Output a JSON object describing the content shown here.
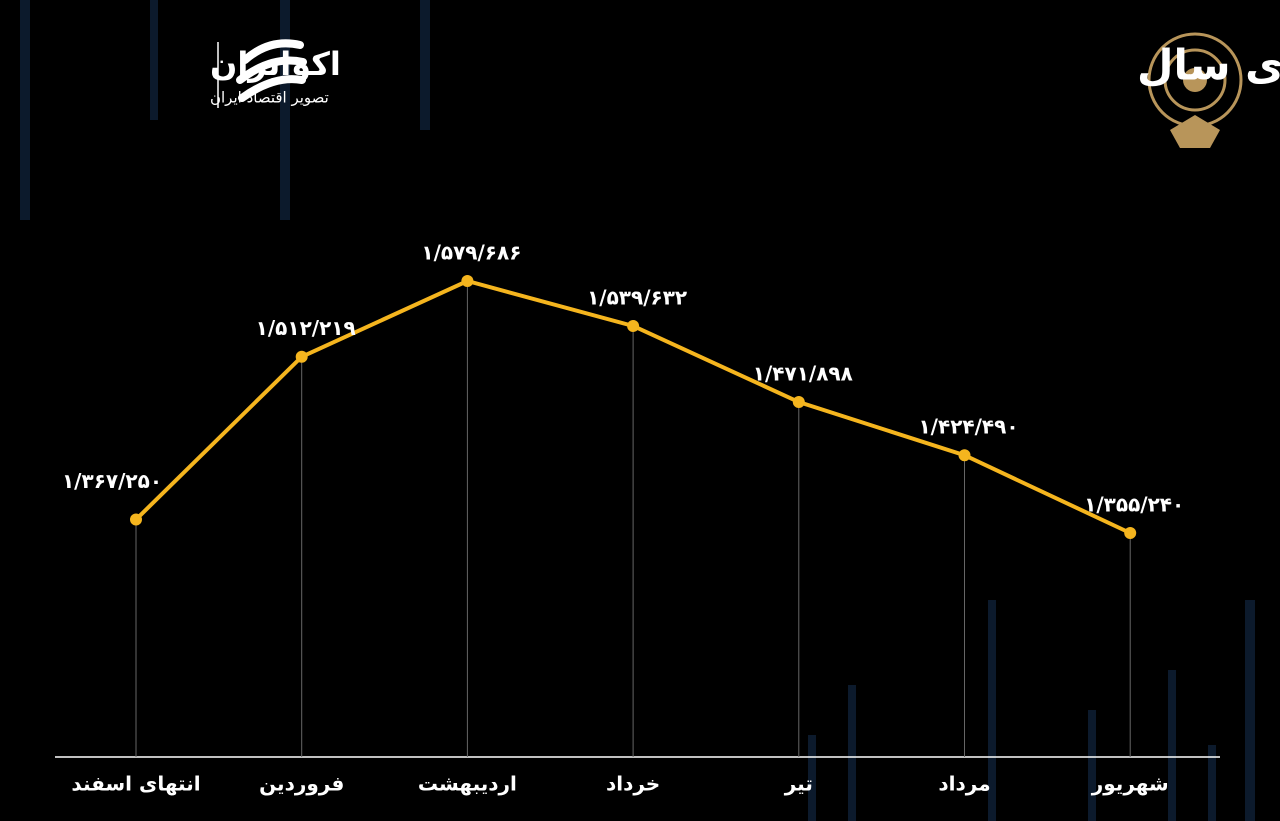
{
  "header": {
    "title": "روند شاخص کل بورس از ابتدای سال",
    "brand": "اکوایران",
    "tagline": "تصویر اقتصاد ایران"
  },
  "chart_data": {
    "type": "line",
    "categories": [
      "انتهای اسفند",
      "فروردین",
      "اردیبهشت",
      "خرداد",
      "تیر",
      "مرداد",
      "شهریور"
    ],
    "series": [
      {
        "color": "#f5b51e",
        "values": [
          1367250,
          1512219,
          1579686,
          1539632,
          1471898,
          1424490,
          1355240
        ],
        "value_labels": [
          "۱/۳۶۷/۲۵۰",
          "۱/۵۱۲/۲۱۹",
          "۱/۵۷۹/۶۸۶",
          "۱/۵۳۹/۶۳۲",
          "۱/۴۷۱/۸۹۸",
          "۱/۴۲۴/۴۹۰",
          "۱/۳۵۵/۲۴۰"
        ]
      }
    ]
  }
}
